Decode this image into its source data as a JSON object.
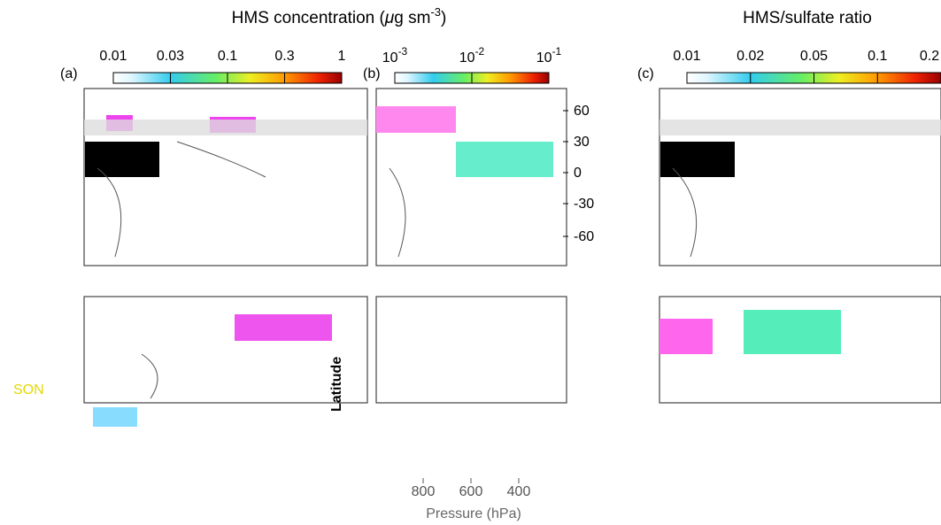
{
  "header": {
    "title_left": "HMS concentration (",
    "title_left_mu": "μ",
    "title_left_unit": "g sm",
    "title_left_sup": "-3",
    "title_left_end": ")",
    "title_right": "HMS/sulfate ratio"
  },
  "colorbars": [
    {
      "ticks": [
        "0.01",
        "0.03",
        "0.1",
        "0.3",
        "1"
      ]
    },
    {
      "ticks": [
        {
          "base": "10",
          "exp": "-3"
        },
        {
          "base": "10",
          "exp": "-2"
        },
        {
          "base": "10",
          "exp": "-1"
        }
      ]
    },
    {
      "ticks": [
        "0.01",
        "0.02",
        "0.05",
        "0.1",
        "0.2"
      ]
    }
  ],
  "panels": [
    {
      "label": "(a)"
    },
    {
      "label": "(b)"
    },
    {
      "label": "(c)"
    }
  ],
  "latitude_ticks": [
    "60",
    "30",
    "0",
    "-30",
    "-60"
  ],
  "latitude_label": "Latitude",
  "season": "SON",
  "pressure_ticks": [
    "800",
    "600",
    "400"
  ],
  "pressure_label": "Pressure (hPa)"
}
